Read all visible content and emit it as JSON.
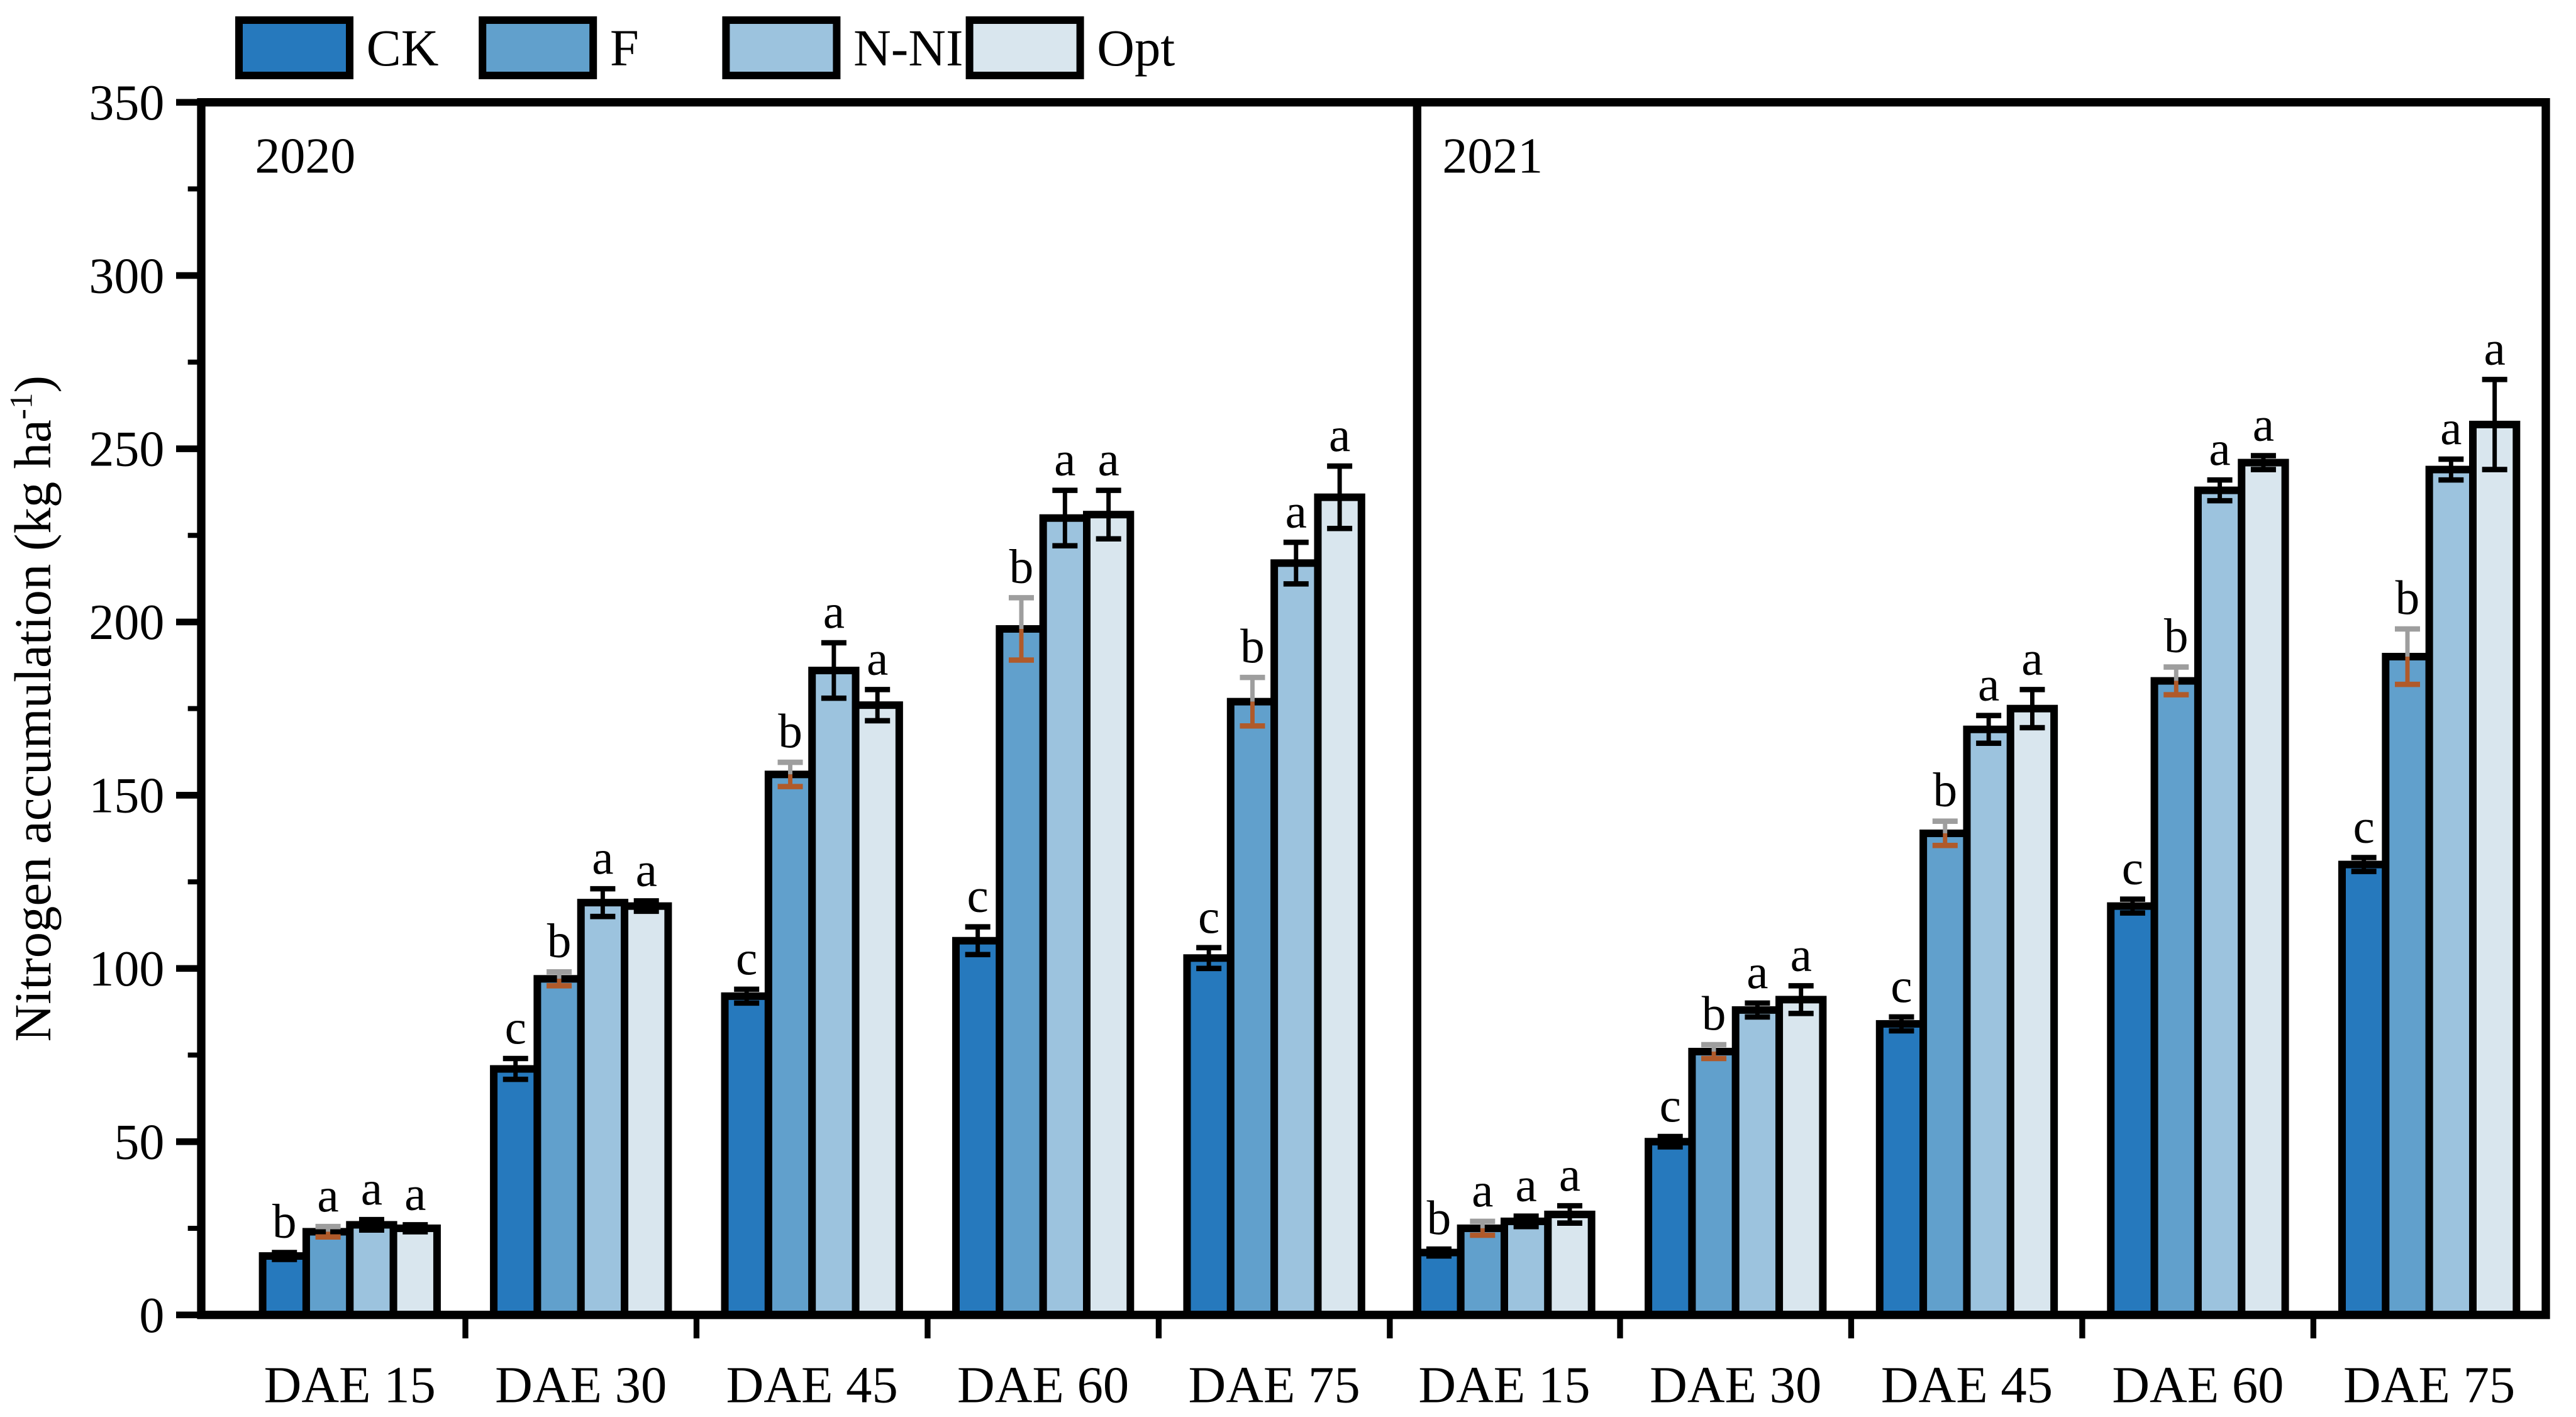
{
  "figure": {
    "background": "#ffffff",
    "frame_color": "#000000"
  },
  "legend": {
    "items": [
      {
        "label": "CK",
        "color": "#2679bd"
      },
      {
        "label": "F",
        "color": "#61a0cc"
      },
      {
        "label": "N-NI",
        "color": "#9cc3de"
      },
      {
        "label": "Opt",
        "color": "#d9e6ee"
      }
    ]
  },
  "chart_data": {
    "type": "bar",
    "title": "",
    "xlabel": "",
    "ylabel": "Nitrogen accumulation (kg ha⁻¹)",
    "ylim": [
      0,
      350
    ],
    "ytick_step": 50,
    "minor_tick_step": 25,
    "grid": false,
    "legend_position": "top-left",
    "series_names": [
      "CK",
      "F",
      "N-NI",
      "Opt"
    ],
    "series_colors": {
      "CK": "#2679bd",
      "F": "#61a0cc",
      "N-NI": "#9cc3de",
      "Opt": "#d9e6ee"
    },
    "bar_border_color": "#000000",
    "error_bar_styles": {
      "default": {
        "upper": "#000000",
        "lower": "#000000"
      },
      "F": {
        "upper": "#9e9e9e",
        "lower": "#b05a2a"
      }
    },
    "panels": [
      {
        "label": "2020",
        "categories": [
          "DAE 15",
          "DAE 30",
          "DAE 45",
          "DAE 60",
          "DAE 75"
        ],
        "series": [
          {
            "name": "CK",
            "values": [
              17,
              71,
              92,
              108,
              103
            ],
            "errors": [
              1,
              3,
              2,
              4,
              3
            ],
            "letters": [
              "b",
              "c",
              "c",
              "c",
              "c"
            ]
          },
          {
            "name": "F",
            "values": [
              24,
              97,
              156,
              198,
              177
            ],
            "errors": [
              1.5,
              2,
              3.5,
              9,
              7
            ],
            "letters": [
              "a",
              "b",
              "b",
              "b",
              "b"
            ]
          },
          {
            "name": "N-NI",
            "values": [
              26,
              119,
              186,
              230,
              217
            ],
            "errors": [
              1.5,
              4,
              8,
              8,
              6
            ],
            "letters": [
              "a",
              "a",
              "a",
              "a",
              "a"
            ]
          },
          {
            "name": "Opt",
            "values": [
              25,
              118,
              176,
              231,
              236
            ],
            "errors": [
              1,
              1.5,
              4.5,
              7,
              9
            ],
            "letters": [
              "a",
              "a",
              "a",
              "a",
              "a"
            ]
          }
        ]
      },
      {
        "label": "2021",
        "categories": [
          "DAE 15",
          "DAE 30",
          "DAE 45",
          "DAE 60",
          "DAE 75"
        ],
        "series": [
          {
            "name": "CK",
            "values": [
              18,
              50,
              84,
              118,
              130
            ],
            "errors": [
              1,
              1.5,
              2,
              2,
              2
            ],
            "letters": [
              "b",
              "c",
              "c",
              "c",
              "c"
            ]
          },
          {
            "name": "F",
            "values": [
              25,
              76,
              139,
              183,
              190
            ],
            "errors": [
              2,
              2,
              3.5,
              4,
              8
            ],
            "letters": [
              "a",
              "b",
              "b",
              "b",
              "b"
            ]
          },
          {
            "name": "N-NI",
            "values": [
              27,
              88,
              169,
              238,
              244
            ],
            "errors": [
              1.5,
              2,
              4,
              3,
              3
            ],
            "letters": [
              "a",
              "a",
              "a",
              "a",
              "a"
            ]
          },
          {
            "name": "Opt",
            "values": [
              29,
              91,
              175,
              246,
              257
            ],
            "errors": [
              2.5,
              4,
              5.5,
              2,
              13
            ],
            "letters": [
              "a",
              "a",
              "a",
              "a",
              "a"
            ]
          }
        ]
      }
    ]
  }
}
